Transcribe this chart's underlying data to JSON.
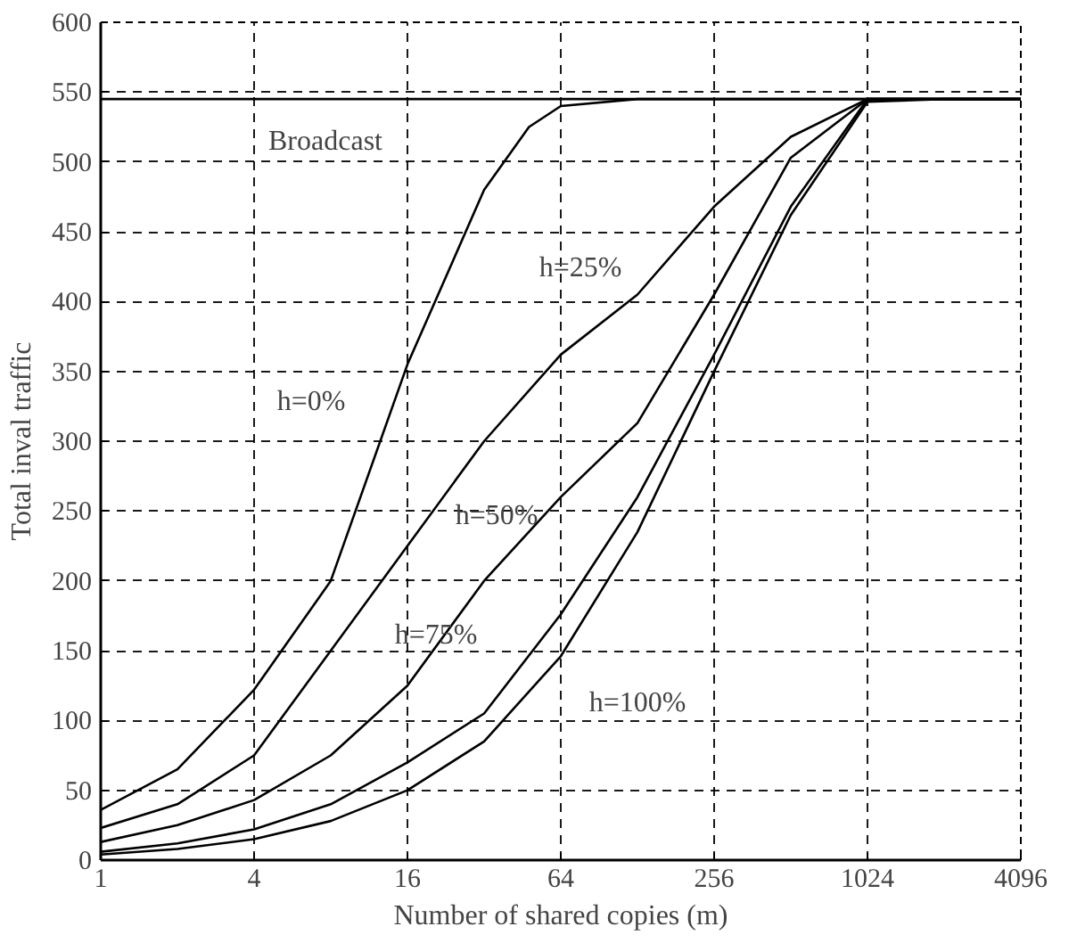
{
  "chart_data": {
    "type": "line",
    "xlabel": "Number of shared copies (m)",
    "ylabel": "Total inval traffic",
    "log": "x",
    "grid": true,
    "marker": "none",
    "line_style": "solid",
    "xlim": [
      1,
      4096
    ],
    "ylim": [
      0,
      600
    ],
    "xticks": [
      1,
      4,
      16,
      64,
      256,
      1024,
      4096
    ],
    "yticks": [
      0,
      50,
      100,
      150,
      200,
      250,
      300,
      350,
      400,
      450,
      500,
      550,
      600
    ],
    "series": [
      {
        "color": "#000000",
        "x": [
          1,
          4096
        ],
        "values": [
          545,
          545
        ]
      },
      {
        "color": "#000000",
        "x": [
          1,
          2,
          4,
          8,
          16,
          32,
          48,
          64,
          128,
          4096
        ],
        "values": [
          36,
          65,
          122,
          200,
          355,
          480,
          525,
          540,
          545,
          545
        ]
      },
      {
        "color": "#000000",
        "x": [
          1,
          2,
          4,
          8,
          16,
          32,
          64,
          128,
          256,
          512,
          1024,
          4096
        ],
        "values": [
          23,
          40,
          75,
          150,
          225,
          300,
          362,
          405,
          468,
          518,
          545,
          545
        ]
      },
      {
        "color": "#000000",
        "x": [
          1,
          2,
          4,
          8,
          16,
          32,
          64,
          128,
          256,
          512,
          1024,
          4096
        ],
        "values": [
          13,
          25,
          43,
          75,
          125,
          200,
          260,
          313,
          405,
          503,
          545,
          545
        ]
      },
      {
        "color": "#000000",
        "x": [
          1,
          2,
          4,
          8,
          16,
          32,
          64,
          128,
          256,
          512,
          1024,
          4096
        ],
        "values": [
          6,
          12,
          22,
          40,
          70,
          105,
          176,
          260,
          362,
          468,
          545,
          545
        ]
      },
      {
        "color": "#000000",
        "x": [
          1,
          2,
          4,
          8,
          16,
          32,
          64,
          128,
          256,
          512,
          1024,
          2048,
          4096
        ],
        "values": [
          4,
          8,
          15,
          28,
          50,
          85,
          146,
          235,
          350,
          462,
          543,
          545,
          545
        ]
      }
    ],
    "annotations": [
      "Broadcast",
      "h=0%",
      "h=25%",
      "h=50%",
      "h=75%",
      "h=100%"
    ]
  }
}
